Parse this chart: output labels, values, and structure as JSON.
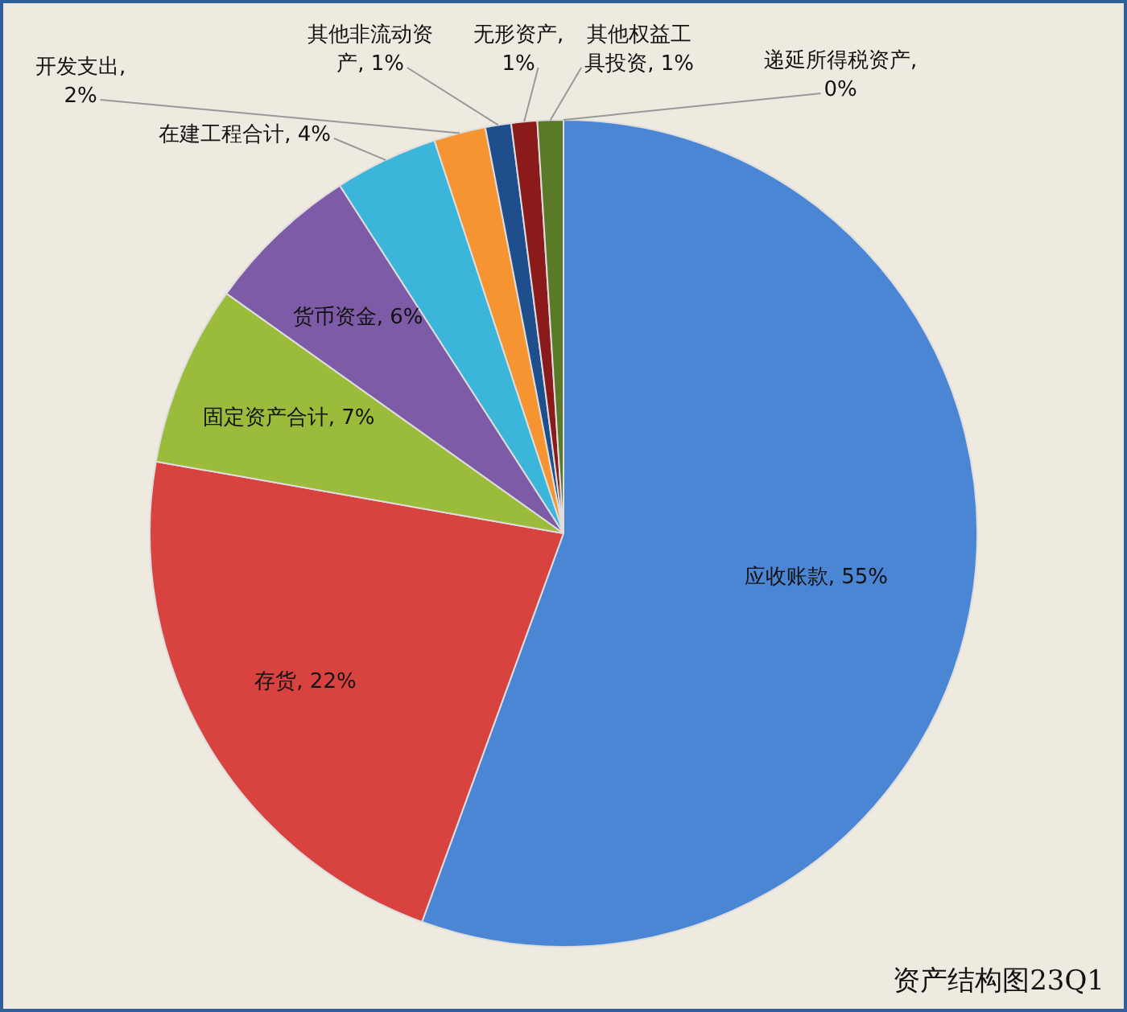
{
  "chart_data": {
    "type": "pie",
    "categories": [
      "应收账款",
      "存货",
      "固定资产合计",
      "货币资金",
      "在建工程合计",
      "开发支出",
      "其他非流动资产",
      "无形资产",
      "其他权益工具投资",
      "递延所得税资产"
    ],
    "values": [
      55,
      22,
      7,
      6,
      4,
      2,
      1,
      1,
      1,
      0
    ],
    "value_labels": [
      ", 55%",
      ", 22%",
      ", 7%",
      ", 6%",
      ", 4%",
      ", 2%",
      ", 1%",
      ", 1%",
      ", 1%",
      ", 0%"
    ],
    "colors": [
      "#4a86d4",
      "#d9433f",
      "#9bbb3b",
      "#7d5ba6",
      "#3bb5d9",
      "#f79432",
      "#1f4e8c",
      "#8b1a1a",
      "#5a7a2a",
      "#4b2d6e"
    ],
    "legend": false,
    "annotations": [
      "资产结构图23Q1"
    ]
  }
}
